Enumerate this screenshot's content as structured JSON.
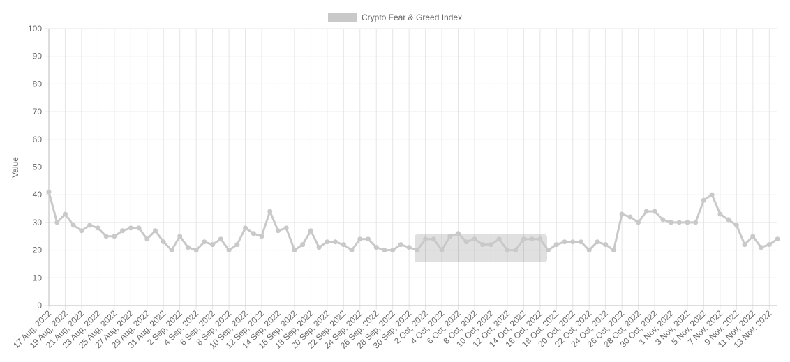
{
  "chart_data": {
    "type": "line",
    "categories": [
      "17 Aug, 2022",
      null,
      "19 Aug, 2022",
      null,
      "21 Aug, 2022",
      null,
      "23 Aug, 2022",
      null,
      "25 Aug, 2022",
      null,
      "27 Aug, 2022",
      null,
      "29 Aug, 2022",
      null,
      "31 Aug, 2022",
      null,
      "2 Sep, 2022",
      null,
      "4 Sep, 2022",
      null,
      "6 Sep, 2022",
      null,
      "8 Sep, 2022",
      null,
      "10 Sep, 2022",
      null,
      "12 Sep, 2022",
      null,
      "14 Sep, 2022",
      null,
      "16 Sep, 2022",
      null,
      "18 Sep, 2022",
      null,
      "20 Sep, 2022",
      null,
      "22 Sep, 2022",
      null,
      "24 Sep, 2022",
      null,
      "26 Sep, 2022",
      null,
      "28 Sep, 2022",
      null,
      "30 Sep, 2022",
      null,
      "2 Oct, 2022",
      null,
      "4 Oct, 2022",
      null,
      "6 Oct, 2022",
      null,
      "8 Oct, 2022",
      null,
      "10 Oct, 2022",
      null,
      "12 Oct, 2022",
      null,
      "14 Oct, 2022",
      null,
      "16 Oct, 2022",
      null,
      "18 Oct, 2022",
      null,
      "20 Oct, 2022",
      null,
      "22 Oct, 2022",
      null,
      "24 Oct, 2022",
      null,
      "26 Oct, 2022",
      null,
      "28 Oct, 2022",
      null,
      "30 Oct, 2022",
      null,
      "1 Nov, 2022",
      null,
      "3 Nov, 2022",
      null,
      "5 Nov, 2022",
      null,
      "7 Nov, 2022",
      null,
      "9 Nov, 2022",
      null,
      "11 Nov, 2022",
      null,
      "13 Nov, 2022",
      null
    ],
    "series": [
      {
        "name": "Crypto Fear & Greed Index",
        "color": "#c9c9c9",
        "values": [
          41,
          30,
          33,
          29,
          27,
          29,
          28,
          25,
          25,
          27,
          28,
          28,
          24,
          27,
          23,
          20,
          25,
          21,
          20,
          23,
          22,
          24,
          20,
          22,
          28,
          26,
          25,
          34,
          27,
          28,
          20,
          22,
          27,
          21,
          23,
          23,
          22,
          20,
          24,
          24,
          21,
          20,
          20,
          22,
          21,
          20,
          24,
          24,
          20,
          25,
          26,
          23,
          24,
          22,
          22,
          24,
          20,
          20,
          24,
          24,
          24,
          20,
          22,
          23,
          23,
          23,
          20,
          23,
          22,
          20,
          33,
          32,
          30,
          34,
          34,
          31,
          30,
          30,
          30,
          30,
          38,
          40,
          33,
          31,
          29,
          22,
          25,
          21,
          22,
          24
        ]
      }
    ],
    "y_label": "Value",
    "ylim": [
      0,
      100
    ],
    "yticks": [
      0,
      10,
      20,
      30,
      40,
      50,
      60,
      70,
      80,
      90,
      100
    ],
    "grid": true,
    "legend": "top"
  }
}
